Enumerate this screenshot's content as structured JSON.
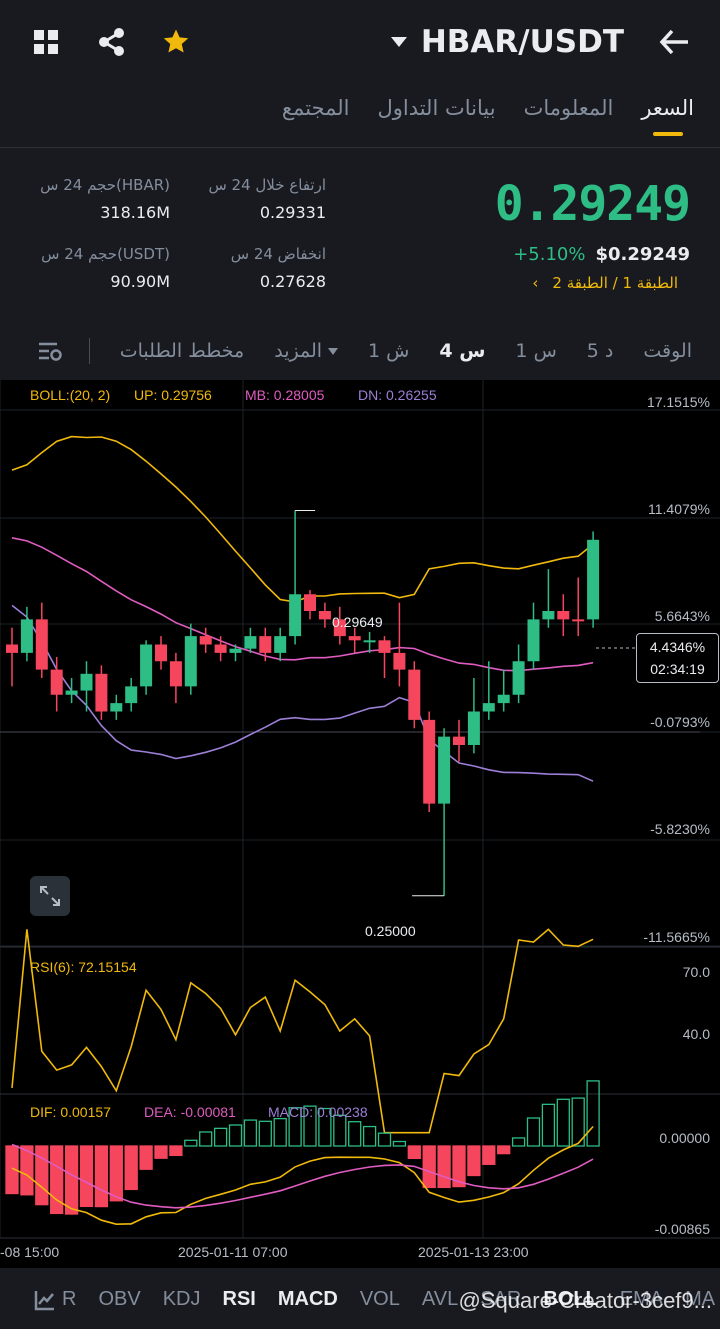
{
  "header": {
    "pair": "HBAR/USDT",
    "icons": [
      "grid-icon",
      "share-icon",
      "star-icon",
      "back-arrow-icon"
    ]
  },
  "tabs": [
    {
      "label": "السعر",
      "active": true
    },
    {
      "label": "المعلومات",
      "active": false
    },
    {
      "label": "بيانات التداول",
      "active": false
    },
    {
      "label": "المجتمع",
      "active": false
    }
  ],
  "ticker": {
    "last_price": "0.29249",
    "change_pct": "+5.10%",
    "usd_price": "$0.29249",
    "layer": "الطبقة 1 / الطبقة 2",
    "high_label": "ارتفاع خلال 24 س",
    "high_value": "0.29331",
    "low_label": "انخفاض 24 س",
    "low_value": "0.27628",
    "vol_base_label": "حجم 24 س(HBAR)",
    "vol_base_value": "318.16M",
    "vol_quote_label": "حجم 24 س(USDT)",
    "vol_quote_value": "90.90M"
  },
  "intervals": {
    "time_label": "الوقت",
    "items": [
      "5 د",
      "1 س",
      "4 س",
      "1 ش"
    ],
    "active": "4 س",
    "more_label": "المزيد",
    "depth_label": "مخطط الطلبات"
  },
  "chart_data": {
    "type": "candlestick",
    "boll_label": "BOLL:(20, 2)",
    "boll_up": "UP: 0.29756",
    "boll_mb": "MB: 0.28005",
    "boll_dn": "DN: 0.26255",
    "price_axis": [
      "17.1515%",
      "11.4079%",
      "5.6643%",
      "-0.0793%",
      "-5.8230%",
      "-11.5665%"
    ],
    "current_pct": "4.4346%",
    "countdown": "02:34:19",
    "max_label": "0.29649",
    "min_label": "0.25000",
    "time_axis": [
      "-08 15:00",
      "2025-01-11 07:00",
      "2025-01-13 23:00"
    ],
    "colors": {
      "up": "#2ebd85",
      "down": "#f6465d",
      "boll_up": "#f0b90b",
      "boll_mb": "#e05cc0",
      "boll_dn": "#9c7fd6"
    },
    "candles": [
      [
        0.28,
        0.279,
        0.282,
        0.275,
        "r"
      ],
      [
        0.279,
        0.283,
        0.2845,
        0.278,
        "g"
      ],
      [
        0.283,
        0.277,
        0.285,
        0.276,
        "r"
      ],
      [
        0.277,
        0.274,
        0.2785,
        0.272,
        "r"
      ],
      [
        0.274,
        0.2745,
        0.276,
        0.273,
        "g"
      ],
      [
        0.2745,
        0.2765,
        0.278,
        0.272,
        "g"
      ],
      [
        0.2765,
        0.272,
        0.2775,
        0.271,
        "r"
      ],
      [
        0.272,
        0.273,
        0.274,
        0.271,
        "g"
      ],
      [
        0.273,
        0.275,
        0.276,
        0.272,
        "g"
      ],
      [
        0.275,
        0.28,
        0.2805,
        0.274,
        "g"
      ],
      [
        0.28,
        0.278,
        0.281,
        0.277,
        "r"
      ],
      [
        0.278,
        0.275,
        0.279,
        0.273,
        "r"
      ],
      [
        0.275,
        0.281,
        0.2825,
        0.274,
        "g"
      ],
      [
        0.281,
        0.28,
        0.282,
        0.279,
        "r"
      ],
      [
        0.28,
        0.279,
        0.281,
        0.278,
        "r"
      ],
      [
        0.279,
        0.2795,
        0.28,
        0.278,
        "g"
      ],
      [
        0.2795,
        0.281,
        0.282,
        0.279,
        "g"
      ],
      [
        0.281,
        0.279,
        0.282,
        0.278,
        "r"
      ],
      [
        0.279,
        0.281,
        0.282,
        0.278,
        "g"
      ],
      [
        0.281,
        0.286,
        0.296,
        0.28,
        "g"
      ],
      [
        0.286,
        0.284,
        0.2865,
        0.283,
        "r"
      ],
      [
        0.284,
        0.283,
        0.285,
        0.282,
        "r"
      ],
      [
        0.283,
        0.281,
        0.2845,
        0.28,
        "r"
      ],
      [
        0.281,
        0.2805,
        0.282,
        0.279,
        "r"
      ],
      [
        0.2805,
        0.2805,
        0.2815,
        0.279,
        "g"
      ],
      [
        0.2805,
        0.279,
        0.281,
        0.276,
        "r"
      ],
      [
        0.279,
        0.277,
        0.285,
        0.275,
        "r"
      ],
      [
        0.277,
        0.271,
        0.278,
        0.27,
        "r"
      ],
      [
        0.271,
        0.261,
        0.272,
        0.26,
        "r"
      ],
      [
        0.261,
        0.269,
        0.27,
        0.25,
        "g"
      ],
      [
        0.269,
        0.268,
        0.271,
        0.266,
        "r"
      ],
      [
        0.268,
        0.272,
        0.276,
        0.267,
        "g"
      ],
      [
        0.272,
        0.273,
        0.278,
        0.271,
        "g"
      ],
      [
        0.273,
        0.274,
        0.277,
        0.272,
        "g"
      ],
      [
        0.274,
        0.278,
        0.28,
        0.273,
        "g"
      ],
      [
        0.278,
        0.283,
        0.285,
        0.277,
        "g"
      ],
      [
        0.283,
        0.284,
        0.289,
        0.282,
        "g"
      ],
      [
        0.284,
        0.283,
        0.286,
        0.281,
        "r"
      ],
      [
        0.283,
        0.283,
        0.288,
        0.281,
        "r"
      ],
      [
        0.283,
        0.2925,
        0.2935,
        0.282,
        "g"
      ]
    ],
    "rsi_label": "RSI(6): 72.15154",
    "rsi_axis": [
      "70.0",
      "40.0"
    ],
    "macd_dif": "DIF: 0.00157",
    "macd_dea": "DEA: -0.00081",
    "macd_macd": "MACD: 0.00238",
    "macd_axis": [
      "0.00000",
      "-0.00865"
    ]
  },
  "footer": {
    "items": [
      "R",
      "OBV",
      "KDJ",
      "RSI",
      "MACD",
      "VOL",
      "AVL",
      "SAR",
      "BOLL",
      "EMA",
      "MA"
    ],
    "active": [
      "RSI",
      "MACD",
      "BOLL"
    ]
  },
  "watermark": "@Square-Creator-3cef9..."
}
